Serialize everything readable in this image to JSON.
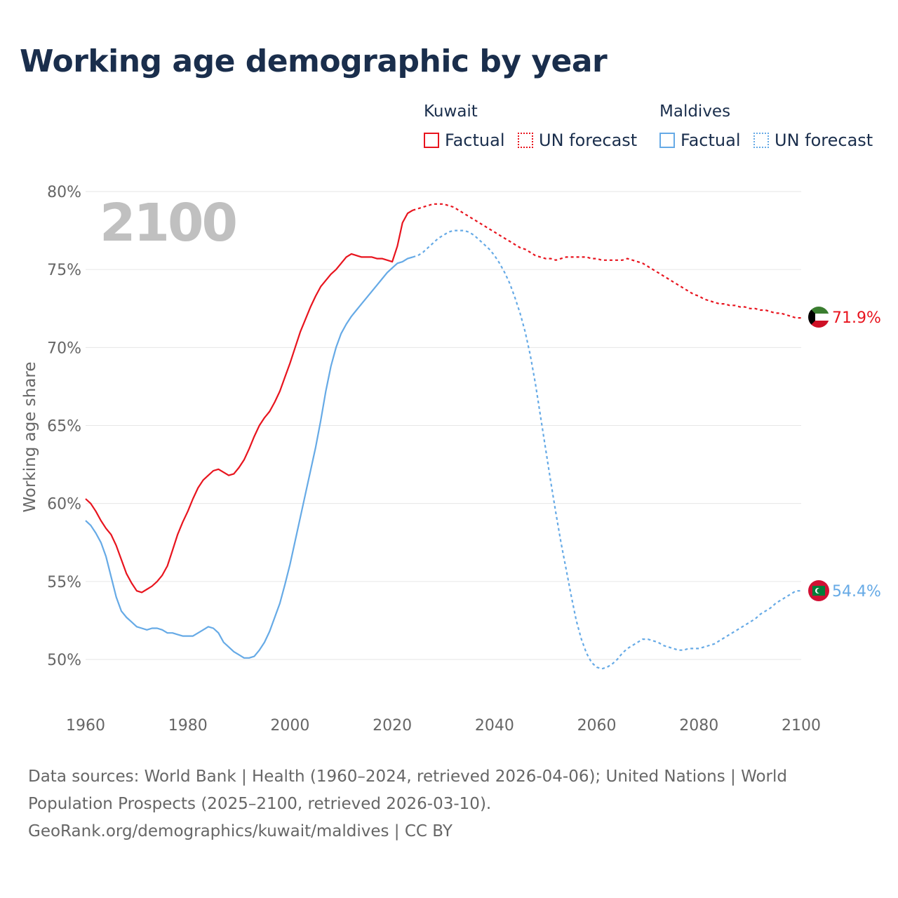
{
  "title": "Working age demographic by year",
  "colors": {
    "kuwait": "#e8141e",
    "maldives": "#66aae6",
    "grid": "#e6e6e6",
    "axis_text": "#666666",
    "year_label": "#c0c0c0"
  },
  "legend": {
    "kuwait": {
      "title": "Kuwait",
      "factual": "Factual",
      "forecast": "UN forecast"
    },
    "maldives": {
      "title": "Maldives",
      "factual": "Factual",
      "forecast": "UN forecast"
    }
  },
  "year_label": "2100",
  "source": {
    "line1": "Data sources: World Bank | Health (1960–2024, retrieved 2026-04-06); United Nations | World",
    "line2": "Population Prospects (2025–2100, retrieved 2026-03-10).",
    "line3": "GeoRank.org/demographics/kuwait/maldives | CC BY"
  },
  "chart_data": {
    "type": "line",
    "title": "Working age demographic by year",
    "xlabel": "",
    "ylabel": "Working age share",
    "xlim": [
      1960,
      2100
    ],
    "ylim": [
      48,
      80
    ],
    "x_ticks": [
      1960,
      1980,
      2000,
      2020,
      2040,
      2060,
      2080,
      2100
    ],
    "y_ticks": [
      50,
      55,
      60,
      65,
      70,
      75,
      80
    ],
    "y_tick_labels": [
      "50%",
      "55%",
      "60%",
      "65%",
      "70%",
      "75%",
      "80%"
    ],
    "series": [
      {
        "name": "Kuwait",
        "end_label": "71.9%",
        "factual": [
          [
            1960,
            60.3
          ],
          [
            1961,
            60.0
          ],
          [
            1962,
            59.5
          ],
          [
            1963,
            58.9
          ],
          [
            1964,
            58.4
          ],
          [
            1965,
            58.0
          ],
          [
            1966,
            57.3
          ],
          [
            1967,
            56.4
          ],
          [
            1968,
            55.5
          ],
          [
            1969,
            54.9
          ],
          [
            1970,
            54.4
          ],
          [
            1971,
            54.3
          ],
          [
            1972,
            54.5
          ],
          [
            1973,
            54.7
          ],
          [
            1974,
            55.0
          ],
          [
            1975,
            55.4
          ],
          [
            1976,
            56.0
          ],
          [
            1977,
            57.0
          ],
          [
            1978,
            58.0
          ],
          [
            1979,
            58.8
          ],
          [
            1980,
            59.5
          ],
          [
            1981,
            60.3
          ],
          [
            1982,
            61.0
          ],
          [
            1983,
            61.5
          ],
          [
            1984,
            61.8
          ],
          [
            1985,
            62.1
          ],
          [
            1986,
            62.2
          ],
          [
            1987,
            62.0
          ],
          [
            1988,
            61.8
          ],
          [
            1989,
            61.9
          ],
          [
            1990,
            62.3
          ],
          [
            1991,
            62.8
          ],
          [
            1992,
            63.5
          ],
          [
            1993,
            64.3
          ],
          [
            1994,
            65.0
          ],
          [
            1995,
            65.5
          ],
          [
            1996,
            65.9
          ],
          [
            1997,
            66.5
          ],
          [
            1998,
            67.2
          ],
          [
            1999,
            68.1
          ],
          [
            2000,
            69.0
          ],
          [
            2001,
            70.0
          ],
          [
            2002,
            71.0
          ],
          [
            2003,
            71.8
          ],
          [
            2004,
            72.6
          ],
          [
            2005,
            73.3
          ],
          [
            2006,
            73.9
          ],
          [
            2007,
            74.3
          ],
          [
            2008,
            74.7
          ],
          [
            2009,
            75.0
          ],
          [
            2010,
            75.4
          ],
          [
            2011,
            75.8
          ],
          [
            2012,
            76.0
          ],
          [
            2013,
            75.9
          ],
          [
            2014,
            75.8
          ],
          [
            2015,
            75.8
          ],
          [
            2016,
            75.8
          ],
          [
            2017,
            75.7
          ],
          [
            2018,
            75.7
          ],
          [
            2019,
            75.6
          ],
          [
            2020,
            75.5
          ],
          [
            2021,
            76.5
          ],
          [
            2022,
            78.0
          ],
          [
            2023,
            78.6
          ],
          [
            2024,
            78.8
          ]
        ],
        "forecast": [
          [
            2024,
            78.8
          ],
          [
            2025,
            78.9
          ],
          [
            2026,
            79.0
          ],
          [
            2027,
            79.1
          ],
          [
            2028,
            79.2
          ],
          [
            2029,
            79.2
          ],
          [
            2030,
            79.2
          ],
          [
            2031,
            79.1
          ],
          [
            2032,
            79.0
          ],
          [
            2033,
            78.8
          ],
          [
            2034,
            78.6
          ],
          [
            2035,
            78.4
          ],
          [
            2036,
            78.2
          ],
          [
            2037,
            78.0
          ],
          [
            2038,
            77.8
          ],
          [
            2039,
            77.6
          ],
          [
            2040,
            77.4
          ],
          [
            2041,
            77.2
          ],
          [
            2042,
            77.0
          ],
          [
            2043,
            76.8
          ],
          [
            2044,
            76.6
          ],
          [
            2045,
            76.4
          ],
          [
            2046,
            76.3
          ],
          [
            2047,
            76.1
          ],
          [
            2048,
            75.9
          ],
          [
            2049,
            75.8
          ],
          [
            2050,
            75.7
          ],
          [
            2051,
            75.7
          ],
          [
            2052,
            75.6
          ],
          [
            2053,
            75.7
          ],
          [
            2054,
            75.8
          ],
          [
            2055,
            75.8
          ],
          [
            2056,
            75.8
          ],
          [
            2057,
            75.8
          ],
          [
            2058,
            75.8
          ],
          [
            2059,
            75.7
          ],
          [
            2060,
            75.7
          ],
          [
            2061,
            75.6
          ],
          [
            2062,
            75.6
          ],
          [
            2063,
            75.6
          ],
          [
            2064,
            75.6
          ],
          [
            2065,
            75.6
          ],
          [
            2066,
            75.7
          ],
          [
            2067,
            75.6
          ],
          [
            2068,
            75.5
          ],
          [
            2069,
            75.4
          ],
          [
            2070,
            75.2
          ],
          [
            2071,
            75.0
          ],
          [
            2072,
            74.8
          ],
          [
            2073,
            74.6
          ],
          [
            2074,
            74.4
          ],
          [
            2075,
            74.2
          ],
          [
            2076,
            74.0
          ],
          [
            2077,
            73.8
          ],
          [
            2078,
            73.6
          ],
          [
            2079,
            73.4
          ],
          [
            2080,
            73.3
          ],
          [
            2081,
            73.1
          ],
          [
            2082,
            73.0
          ],
          [
            2083,
            72.9
          ],
          [
            2084,
            72.8
          ],
          [
            2085,
            72.8
          ],
          [
            2086,
            72.7
          ],
          [
            2087,
            72.7
          ],
          [
            2088,
            72.6
          ],
          [
            2089,
            72.6
          ],
          [
            2090,
            72.5
          ],
          [
            2091,
            72.5
          ],
          [
            2092,
            72.4
          ],
          [
            2093,
            72.4
          ],
          [
            2094,
            72.3
          ],
          [
            2095,
            72.2
          ],
          [
            2096,
            72.2
          ],
          [
            2097,
            72.1
          ],
          [
            2098,
            72.0
          ],
          [
            2099,
            71.9
          ],
          [
            2100,
            71.9
          ]
        ]
      },
      {
        "name": "Maldives",
        "end_label": "54.4%",
        "factual": [
          [
            1960,
            58.9
          ],
          [
            1961,
            58.6
          ],
          [
            1962,
            58.1
          ],
          [
            1963,
            57.5
          ],
          [
            1964,
            56.6
          ],
          [
            1965,
            55.3
          ],
          [
            1966,
            54.0
          ],
          [
            1967,
            53.1
          ],
          [
            1968,
            52.7
          ],
          [
            1969,
            52.4
          ],
          [
            1970,
            52.1
          ],
          [
            1971,
            52.0
          ],
          [
            1972,
            51.9
          ],
          [
            1973,
            52.0
          ],
          [
            1974,
            52.0
          ],
          [
            1975,
            51.9
          ],
          [
            1976,
            51.7
          ],
          [
            1977,
            51.7
          ],
          [
            1978,
            51.6
          ],
          [
            1979,
            51.5
          ],
          [
            1980,
            51.5
          ],
          [
            1981,
            51.5
          ],
          [
            1982,
            51.7
          ],
          [
            1983,
            51.9
          ],
          [
            1984,
            52.1
          ],
          [
            1985,
            52.0
          ],
          [
            1986,
            51.7
          ],
          [
            1987,
            51.1
          ],
          [
            1988,
            50.8
          ],
          [
            1989,
            50.5
          ],
          [
            1990,
            50.3
          ],
          [
            1991,
            50.1
          ],
          [
            1992,
            50.1
          ],
          [
            1993,
            50.2
          ],
          [
            1994,
            50.6
          ],
          [
            1995,
            51.1
          ],
          [
            1996,
            51.8
          ],
          [
            1997,
            52.7
          ],
          [
            1998,
            53.6
          ],
          [
            1999,
            54.8
          ],
          [
            2000,
            56.1
          ],
          [
            2001,
            57.6
          ],
          [
            2002,
            59.1
          ],
          [
            2003,
            60.6
          ],
          [
            2004,
            62.1
          ],
          [
            2005,
            63.6
          ],
          [
            2006,
            65.3
          ],
          [
            2007,
            67.2
          ],
          [
            2008,
            68.8
          ],
          [
            2009,
            70.0
          ],
          [
            2010,
            70.9
          ],
          [
            2011,
            71.5
          ],
          [
            2012,
            72.0
          ],
          [
            2013,
            72.4
          ],
          [
            2014,
            72.8
          ],
          [
            2015,
            73.2
          ],
          [
            2016,
            73.6
          ],
          [
            2017,
            74.0
          ],
          [
            2018,
            74.4
          ],
          [
            2019,
            74.8
          ],
          [
            2020,
            75.1
          ],
          [
            2021,
            75.4
          ],
          [
            2022,
            75.5
          ],
          [
            2023,
            75.7
          ],
          [
            2024,
            75.8
          ]
        ],
        "forecast": [
          [
            2024,
            75.8
          ],
          [
            2025,
            75.9
          ],
          [
            2026,
            76.1
          ],
          [
            2027,
            76.4
          ],
          [
            2028,
            76.7
          ],
          [
            2029,
            77.0
          ],
          [
            2030,
            77.2
          ],
          [
            2031,
            77.4
          ],
          [
            2032,
            77.5
          ],
          [
            2033,
            77.5
          ],
          [
            2034,
            77.5
          ],
          [
            2035,
            77.4
          ],
          [
            2036,
            77.2
          ],
          [
            2037,
            76.9
          ],
          [
            2038,
            76.6
          ],
          [
            2039,
            76.3
          ],
          [
            2040,
            75.9
          ],
          [
            2041,
            75.4
          ],
          [
            2042,
            74.8
          ],
          [
            2043,
            74.1
          ],
          [
            2044,
            73.2
          ],
          [
            2045,
            72.2
          ],
          [
            2046,
            71.0
          ],
          [
            2047,
            69.5
          ],
          [
            2048,
            67.7
          ],
          [
            2049,
            65.6
          ],
          [
            2050,
            63.5
          ],
          [
            2051,
            61.4
          ],
          [
            2052,
            59.4
          ],
          [
            2053,
            57.5
          ],
          [
            2054,
            55.8
          ],
          [
            2055,
            54.1
          ],
          [
            2056,
            52.5
          ],
          [
            2057,
            51.3
          ],
          [
            2058,
            50.4
          ],
          [
            2059,
            49.8
          ],
          [
            2060,
            49.5
          ],
          [
            2061,
            49.4
          ],
          [
            2062,
            49.5
          ],
          [
            2063,
            49.7
          ],
          [
            2064,
            50.0
          ],
          [
            2065,
            50.4
          ],
          [
            2066,
            50.7
          ],
          [
            2067,
            50.9
          ],
          [
            2068,
            51.1
          ],
          [
            2069,
            51.3
          ],
          [
            2070,
            51.3
          ],
          [
            2071,
            51.2
          ],
          [
            2072,
            51.1
          ],
          [
            2073,
            50.9
          ],
          [
            2074,
            50.8
          ],
          [
            2075,
            50.7
          ],
          [
            2076,
            50.6
          ],
          [
            2077,
            50.6
          ],
          [
            2078,
            50.7
          ],
          [
            2079,
            50.7
          ],
          [
            2080,
            50.7
          ],
          [
            2081,
            50.8
          ],
          [
            2082,
            50.9
          ],
          [
            2083,
            51.0
          ],
          [
            2084,
            51.2
          ],
          [
            2085,
            51.4
          ],
          [
            2086,
            51.6
          ],
          [
            2087,
            51.8
          ],
          [
            2088,
            52.0
          ],
          [
            2089,
            52.2
          ],
          [
            2090,
            52.4
          ],
          [
            2091,
            52.6
          ],
          [
            2092,
            52.9
          ],
          [
            2093,
            53.1
          ],
          [
            2094,
            53.3
          ],
          [
            2095,
            53.6
          ],
          [
            2096,
            53.8
          ],
          [
            2097,
            54.0
          ],
          [
            2098,
            54.2
          ],
          [
            2099,
            54.4
          ],
          [
            2100,
            54.4
          ]
        ]
      }
    ]
  }
}
